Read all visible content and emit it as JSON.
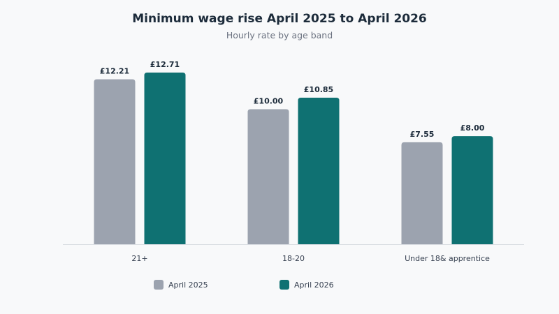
{
  "title": "Minimum wage rise April 2025 to April 2026",
  "subtitle": "Hourly rate by age band",
  "colors": {
    "april_2025": "#9ca3af",
    "april_2026": "#0f7172",
    "baseline": "#d9dde2"
  },
  "legend": [
    {
      "label": "April 2025",
      "color": "#9ca3af"
    },
    {
      "label": "April 2026",
      "color": "#0f7172"
    }
  ],
  "chart_data": {
    "type": "bar",
    "title": "Minimum wage rise April 2025 to April 2026",
    "subtitle": "Hourly rate by age band",
    "categories": [
      "21+",
      "18-20",
      "Under 18& apprentice"
    ],
    "series": [
      {
        "name": "April 2025",
        "values": [
          12.21,
          10.0,
          7.55
        ],
        "labels": [
          "£12.21",
          "£10.00",
          "£7.55"
        ]
      },
      {
        "name": "April 2026",
        "values": [
          12.71,
          10.85,
          8.0
        ],
        "labels": [
          "£12.71",
          "£10.85",
          "£8.00"
        ]
      }
    ],
    "xlabel": "",
    "ylabel": "",
    "ylim": [
      0,
      12.71
    ],
    "grid": false,
    "legend_position": "bottom"
  }
}
